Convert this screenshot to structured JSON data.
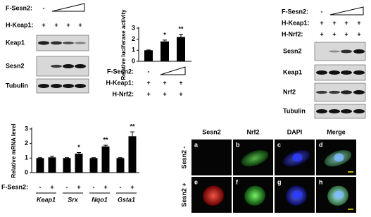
{
  "blot_a": {
    "conditions": [
      {
        "label": "F-Sesn2:",
        "marks": [
          "-"
        ]
      },
      {
        "label": "H-Keap1:",
        "marks": [
          "+",
          "+",
          "+",
          "+"
        ]
      }
    ],
    "bands": [
      "Keap1",
      "Sesn2",
      "Tubulin"
    ]
  },
  "blot_b": {
    "conditions": [
      {
        "label": "F-Sesn2:",
        "marks": [
          "-"
        ]
      },
      {
        "label": "H-Keap1:",
        "marks": [
          "+",
          "+",
          "+",
          "+"
        ]
      },
      {
        "label": "H-Nrf2:",
        "marks": [
          "+",
          "+",
          "+",
          "+"
        ]
      }
    ],
    "bands": [
      "Sesn2",
      "Keap1",
      "Nrf2",
      "Tubulin"
    ]
  },
  "chart_data": [
    {
      "type": "bar",
      "y_label": "Relative luciferase activity",
      "values": [
        1,
        1.8,
        2.2
      ],
      "errors": [
        0.03,
        0.12,
        0.25
      ],
      "significance": [
        null,
        "*",
        "**"
      ],
      "color": "#000000",
      "ylim": [
        0,
        3
      ],
      "yticks": [
        0,
        1,
        2,
        3
      ],
      "conditions": [
        {
          "label": "F-Sesn2:",
          "marks": [
            "-"
          ]
        },
        {
          "label": "H-Keap1:",
          "marks": [
            "+",
            "+",
            "+"
          ]
        },
        {
          "label": "H-Nrf2:",
          "marks": [
            "+",
            "+",
            "+"
          ]
        }
      ]
    },
    {
      "type": "bar",
      "y_label": "Relative mRNA level",
      "groups": [
        "Keap1",
        "Srx",
        "Nqo1",
        "Gsta1"
      ],
      "values": [
        1,
        1.05,
        1,
        1.3,
        1,
        1.8,
        1,
        2.5
      ],
      "errors": [
        0.03,
        0.07,
        0.03,
        0.08,
        0.03,
        0.08,
        0.03,
        0.3
      ],
      "significance": [
        null,
        null,
        null,
        "*",
        null,
        "**",
        null,
        "**"
      ],
      "color": "#000000",
      "ylim": [
        0,
        3
      ],
      "yticks": [
        0,
        1,
        2,
        3
      ],
      "conditions": [
        {
          "label": "F-Sesn2:",
          "marks": [
            "-",
            "+",
            "-",
            "+",
            "-",
            "+",
            "-",
            "+"
          ]
        }
      ]
    }
  ],
  "microscopy": {
    "columns": [
      "Sesn2",
      "Nrf2",
      "DAPI",
      "Merge"
    ],
    "rows": [
      "Sesn2 -",
      "Sesn2 +"
    ],
    "panels": [
      "a",
      "b",
      "c",
      "d",
      "e",
      "f",
      "g",
      "h"
    ]
  }
}
